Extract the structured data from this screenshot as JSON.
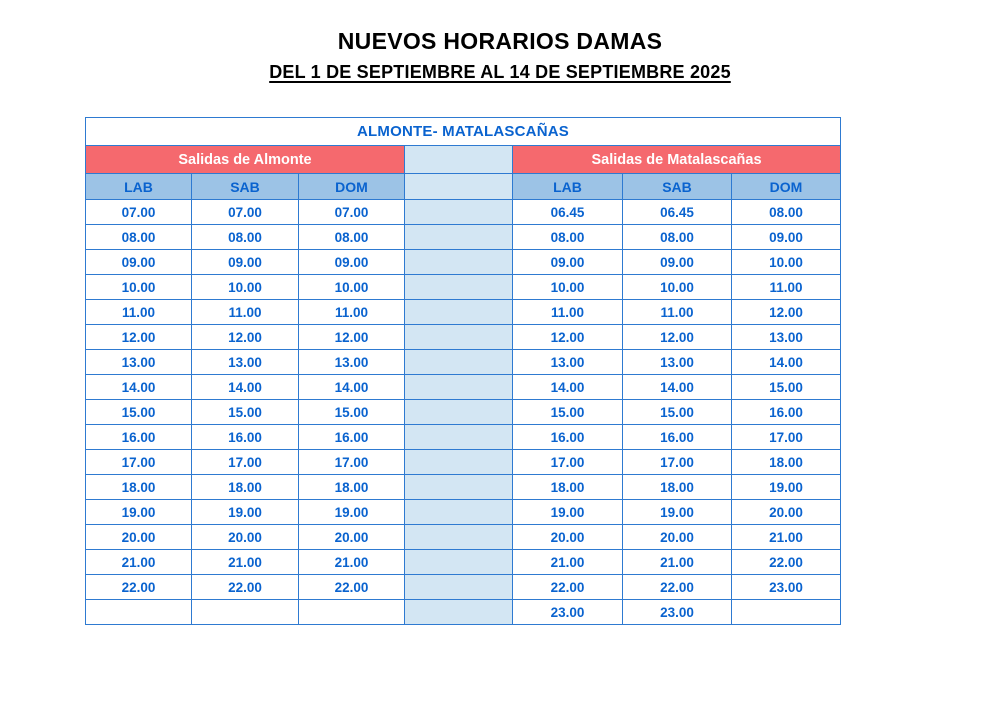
{
  "title": "NUEVOS HORARIOS DAMAS",
  "subtitle": "DEL 1 DE SEPTIEMBRE AL 14 DE SEPTIEMBRE 2025",
  "colors": {
    "time_text_blue": "#0a63cf",
    "table_border_blue": "#2e7ad1",
    "column_header_bg": "#9cc3e6",
    "separator_bg": "#d3e6f3",
    "separator_rule": "#3f3f3f",
    "section_header_bg": "#f5696e",
    "section_header_text": "#ffffff"
  },
  "table": {
    "route_title": "ALMONTE- MATALASCAÑAS",
    "left_section": "Salidas de Almonte",
    "right_section": "Salidas de Matalascañas",
    "columns_left": [
      "LAB",
      "SAB",
      "DOM"
    ],
    "columns_right": [
      "LAB",
      "SAB",
      "DOM"
    ],
    "rows": [
      {
        "left": [
          "07.00",
          "07.00",
          "07.00"
        ],
        "right": [
          "06.45",
          "06.45",
          "08.00"
        ]
      },
      {
        "left": [
          "08.00",
          "08.00",
          "08.00"
        ],
        "right": [
          "08.00",
          "08.00",
          "09.00"
        ]
      },
      {
        "left": [
          "09.00",
          "09.00",
          "09.00"
        ],
        "right": [
          "09.00",
          "09.00",
          "10.00"
        ]
      },
      {
        "left": [
          "10.00",
          "10.00",
          "10.00"
        ],
        "right": [
          "10.00",
          "10.00",
          "11.00"
        ]
      },
      {
        "left": [
          "11.00",
          "11.00",
          "11.00"
        ],
        "right": [
          "11.00",
          "11.00",
          "12.00"
        ]
      },
      {
        "left": [
          "12.00",
          "12.00",
          "12.00"
        ],
        "right": [
          "12.00",
          "12.00",
          "13.00"
        ]
      },
      {
        "left": [
          "13.00",
          "13.00",
          "13.00"
        ],
        "right": [
          "13.00",
          "13.00",
          "14.00"
        ]
      },
      {
        "left": [
          "14.00",
          "14.00",
          "14.00"
        ],
        "right": [
          "14.00",
          "14.00",
          "15.00"
        ]
      },
      {
        "left": [
          "15.00",
          "15.00",
          "15.00"
        ],
        "right": [
          "15.00",
          "15.00",
          "16.00"
        ]
      },
      {
        "left": [
          "16.00",
          "16.00",
          "16.00"
        ],
        "right": [
          "16.00",
          "16.00",
          "17.00"
        ]
      },
      {
        "left": [
          "17.00",
          "17.00",
          "17.00"
        ],
        "right": [
          "17.00",
          "17.00",
          "18.00"
        ]
      },
      {
        "left": [
          "18.00",
          "18.00",
          "18.00"
        ],
        "right": [
          "18.00",
          "18.00",
          "19.00"
        ]
      },
      {
        "left": [
          "19.00",
          "19.00",
          "19.00"
        ],
        "right": [
          "19.00",
          "19.00",
          "20.00"
        ]
      },
      {
        "left": [
          "20.00",
          "20.00",
          "20.00"
        ],
        "right": [
          "20.00",
          "20.00",
          "21.00"
        ]
      },
      {
        "left": [
          "21.00",
          "21.00",
          "21.00"
        ],
        "right": [
          "21.00",
          "21.00",
          "22.00"
        ]
      },
      {
        "left": [
          "22.00",
          "22.00",
          "22.00"
        ],
        "right": [
          "22.00",
          "22.00",
          "23.00"
        ]
      },
      {
        "left": [
          "",
          "",
          ""
        ],
        "right": [
          "23.00",
          "23.00",
          ""
        ]
      }
    ]
  }
}
